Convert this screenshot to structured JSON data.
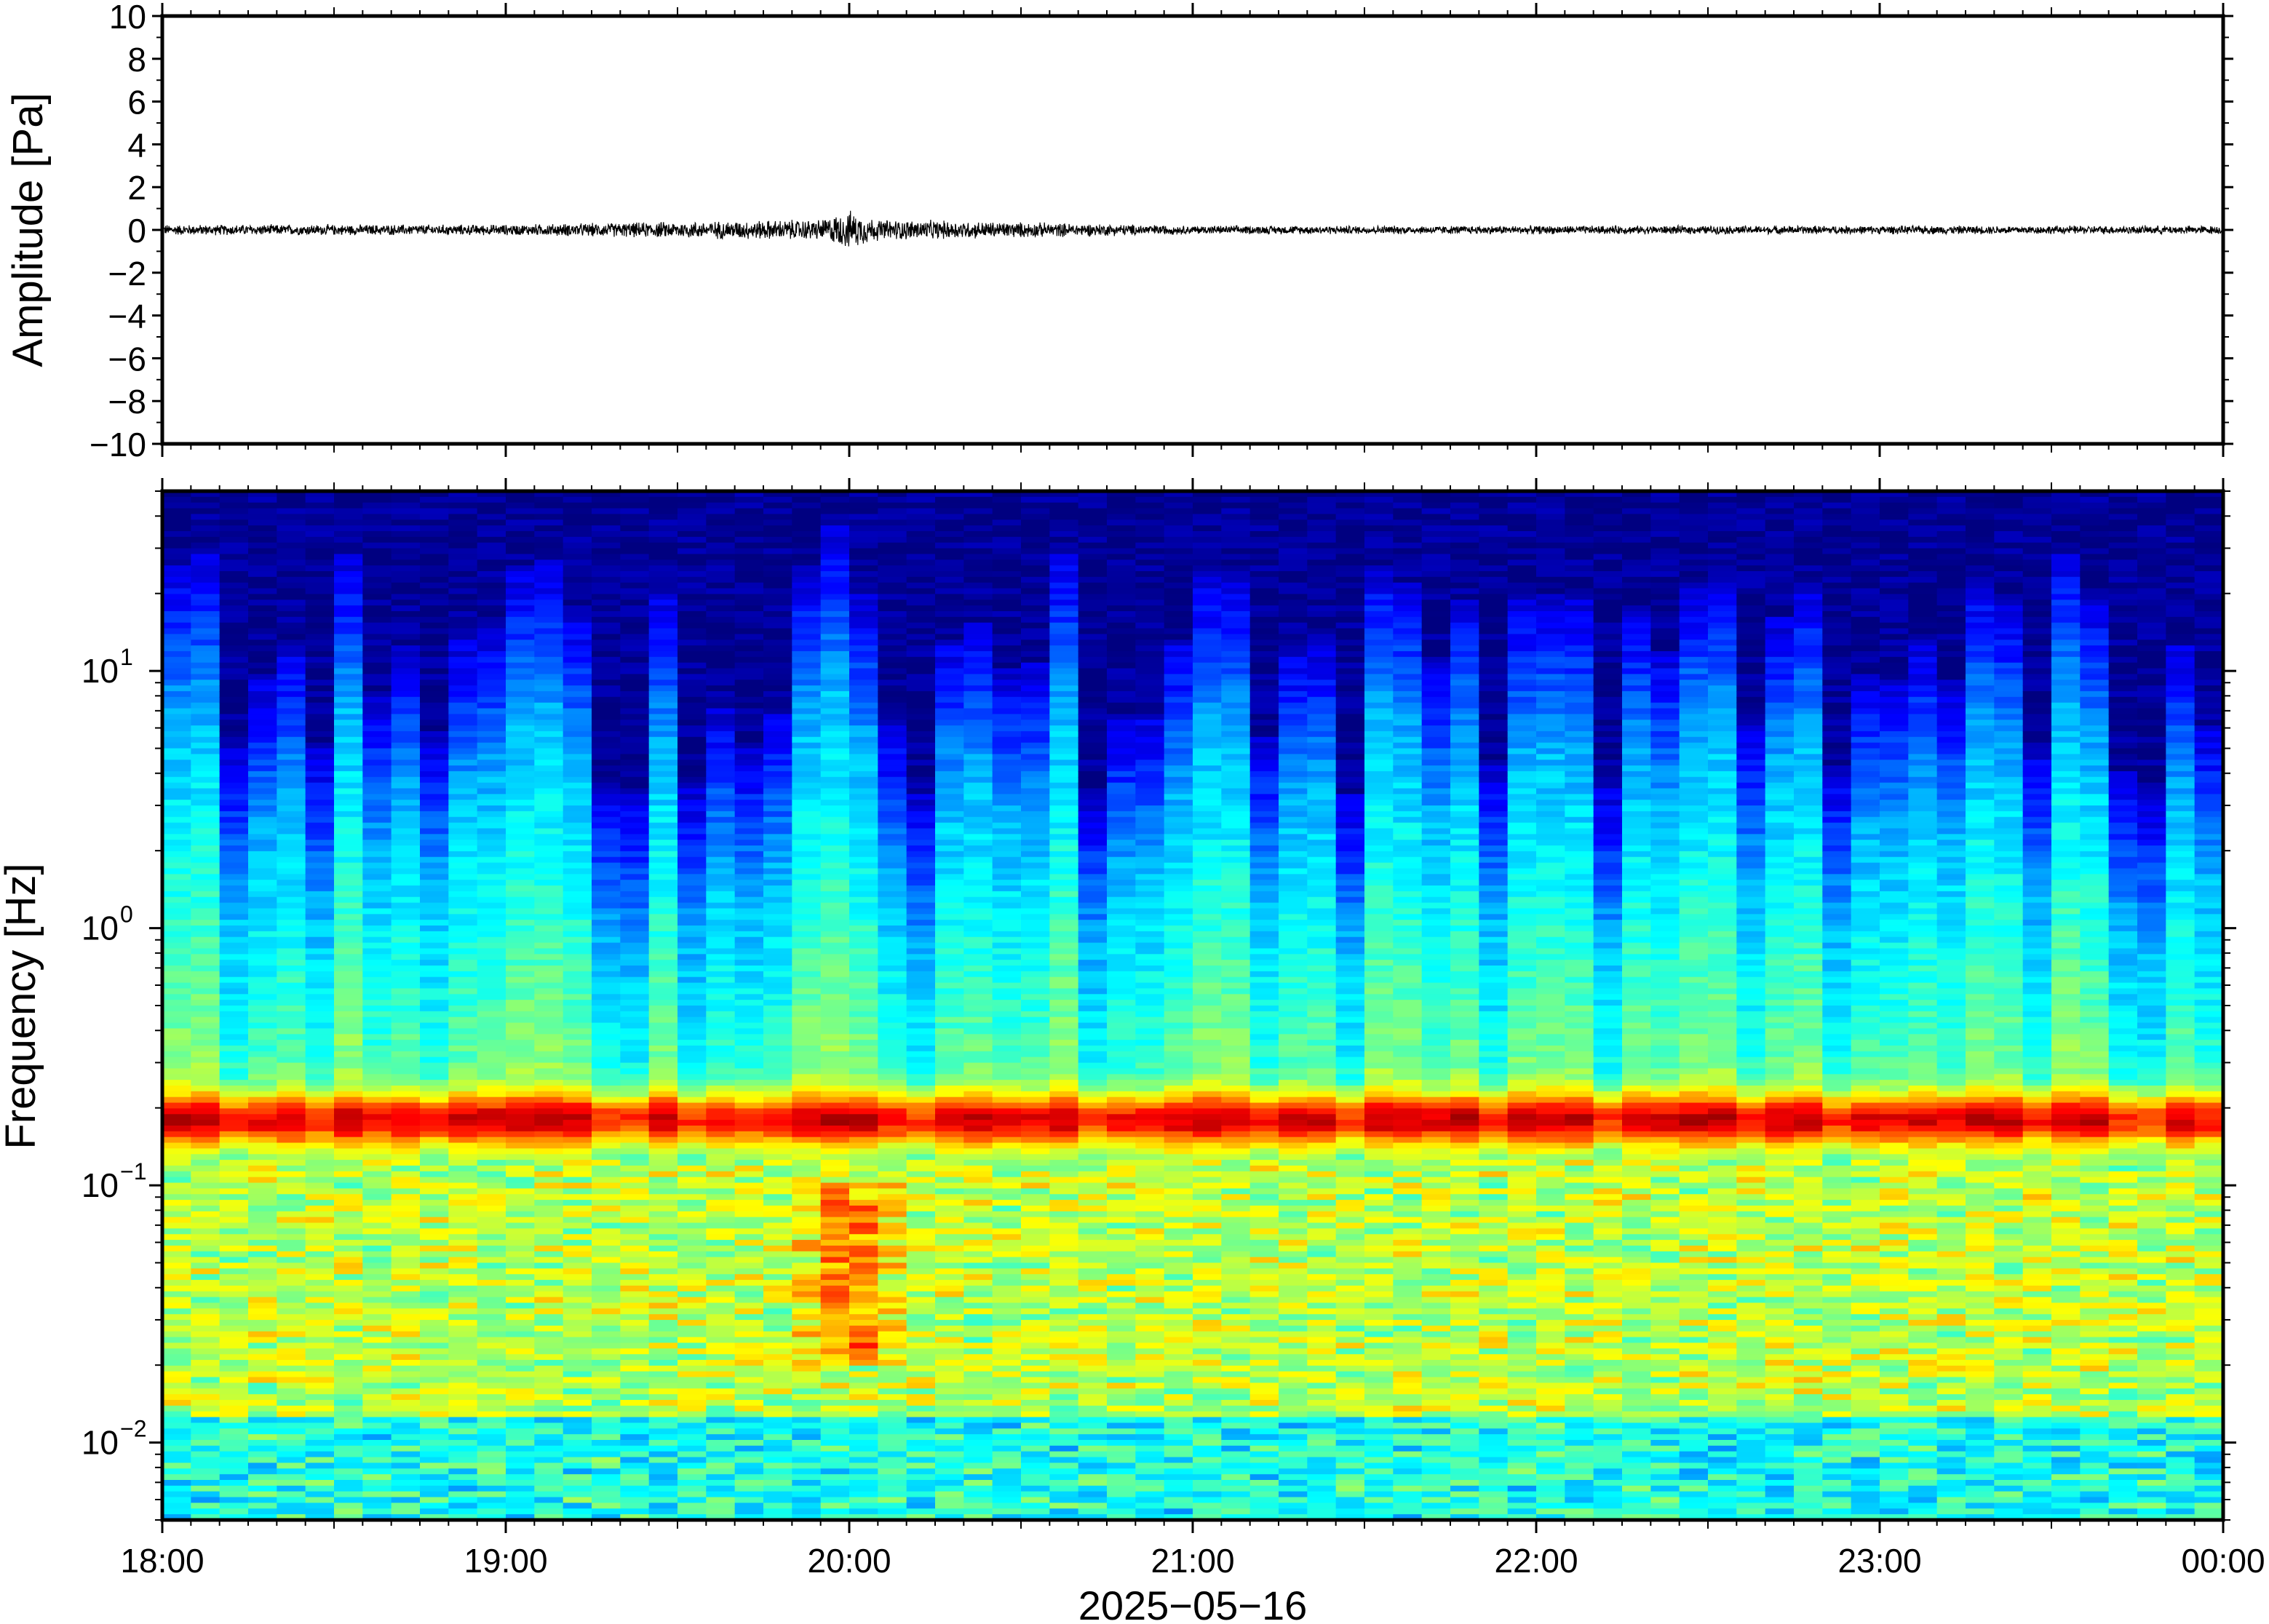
{
  "chart_data": [
    {
      "type": "line",
      "title": "",
      "xlabel": "",
      "ylabel": "Amplitude [Pa]",
      "ylim": [
        -10,
        10
      ],
      "y_ticks": [
        10,
        8,
        6,
        4,
        2,
        0,
        -2,
        -4,
        -6,
        -8,
        -10
      ],
      "y_tick_labels": [
        "10",
        "8",
        "6",
        "4",
        "2",
        "0",
        "−2",
        "−4",
        "−6",
        "−8",
        "−10"
      ],
      "xlim": [
        "2025-05-16T18:00",
        "2025-05-17T00:00"
      ],
      "series": [
        {
          "description": "waveform, near zero throughout with a burst near 20:00",
          "x": [
            "2025-05-16T18:00",
            "2025-05-16T19:00",
            "2025-05-16T19:55",
            "2025-05-16T20:00",
            "2025-05-16T20:05",
            "2025-05-16T21:00",
            "2025-05-16T22:00",
            "2025-05-16T23:00",
            "2025-05-17T00:00"
          ],
          "envelope": [
            0.25,
            0.25,
            0.5,
            0.9,
            0.5,
            0.2,
            0.2,
            0.2,
            0.2
          ]
        }
      ],
      "grid": false
    },
    {
      "type": "heatmap",
      "title": "",
      "xlabel": "2025−05−16",
      "ylabel": "Frequency [Hz]",
      "y_scale": "log",
      "ylim": [
        0.005,
        50
      ],
      "y_ticks": [
        0.01,
        0.1,
        1,
        10
      ],
      "y_tick_labels": [
        {
          "base": "10",
          "exp": "−2"
        },
        {
          "base": "10",
          "exp": "−1"
        },
        {
          "base": "10",
          "exp": "0"
        },
        {
          "base": "10",
          "exp": "1"
        }
      ],
      "x_tick_labels": [
        "18:00",
        "19:00",
        "20:00",
        "21:00",
        "22:00",
        "23:00",
        "00:00"
      ],
      "colormap": "jet",
      "colors": {
        "low": "#000080",
        "mid": "#7fffd4",
        "high": "#ff6600"
      },
      "features": {
        "microbarom_band_hz": 0.18,
        "event_time": "2025-05-16T20:00",
        "event_low_freq_hz": [
          0.02,
          0.1
        ]
      },
      "grid": false
    }
  ],
  "x_axis": {
    "date_label": "2025−05−16"
  }
}
